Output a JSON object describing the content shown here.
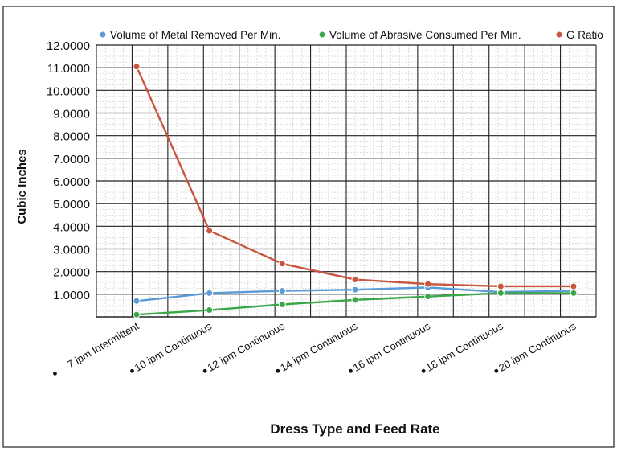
{
  "chart_data": {
    "type": "line",
    "categories": [
      "7 ipm Intermittent",
      "10 ipm Continuous",
      "12 ipm Continuous",
      "14 ipm Continuous",
      "16 ipm Continuous",
      "18 ipm Continuous",
      "20 ipm Continuous"
    ],
    "series": [
      {
        "name": "Volume of Metal Removed Per Min.",
        "color": "#5b9bd5",
        "values": [
          0.7,
          1.05,
          1.15,
          1.2,
          1.3,
          1.1,
          1.15
        ]
      },
      {
        "name": "Volume of Abrasive Consumed Per Min.",
        "color": "#3aa84a",
        "values": [
          0.1,
          0.3,
          0.55,
          0.75,
          0.9,
          1.05,
          1.05
        ]
      },
      {
        "name": "G Ratio",
        "color": "#c8553d",
        "values": [
          11.05,
          3.8,
          2.35,
          1.65,
          1.45,
          1.35,
          1.35
        ]
      }
    ],
    "xlabel": "Dress Type and Feed Rate",
    "ylabel": "Cubic Inches",
    "ylim": [
      0,
      12
    ],
    "yticks": [
      "1.0000",
      "2.0000",
      "3.0000",
      "4.0000",
      "5.0000",
      "6.0000",
      "7.0000",
      "8.0000",
      "9.0000",
      "10.0000",
      "11.0000",
      "12.0000"
    ],
    "legend_position": "top",
    "grid": true
  }
}
